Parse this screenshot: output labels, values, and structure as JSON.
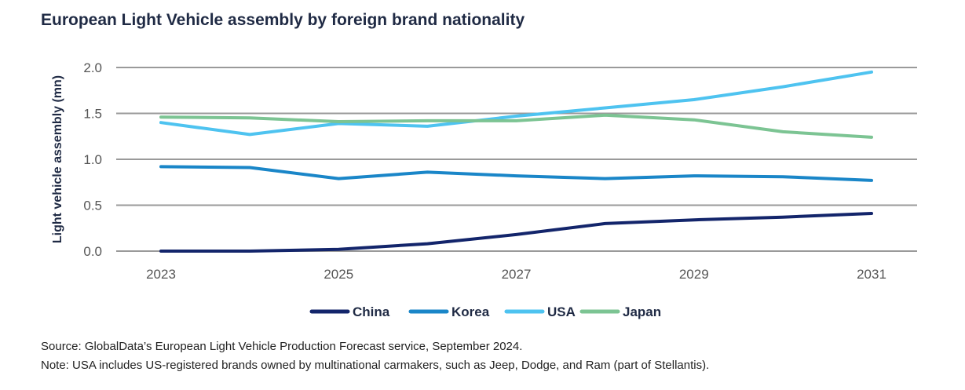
{
  "chart_data": {
    "type": "line",
    "title": "European Light Vehicle assembly by foreign brand nationality",
    "ylabel": "Light vehicle assembly (mn)",
    "xlabel": "",
    "x": [
      2023,
      2024,
      2025,
      2026,
      2027,
      2028,
      2029,
      2030,
      2031
    ],
    "x_ticks": [
      "2023",
      "2025",
      "2027",
      "2029",
      "2031"
    ],
    "y_ticks": [
      "0.0",
      "0.5",
      "1.0",
      "1.5",
      "2.0"
    ],
    "ylim": [
      0,
      2.0
    ],
    "grid": "horizontal",
    "legend_position": "bottom",
    "series": [
      {
        "name": "China",
        "color": "#13256b",
        "values": [
          0.0,
          0.0,
          0.02,
          0.08,
          0.18,
          0.3,
          0.34,
          0.37,
          0.41
        ]
      },
      {
        "name": "Korea",
        "color": "#1a86c8",
        "values": [
          0.92,
          0.91,
          0.79,
          0.86,
          0.82,
          0.79,
          0.82,
          0.81,
          0.77
        ]
      },
      {
        "name": "USA",
        "color": "#4ec3f0",
        "values": [
          1.4,
          1.27,
          1.39,
          1.36,
          1.47,
          1.56,
          1.65,
          1.79,
          1.95
        ]
      },
      {
        "name": "Japan",
        "color": "#7cc493",
        "values": [
          1.46,
          1.45,
          1.41,
          1.42,
          1.42,
          1.48,
          1.43,
          1.3,
          1.24
        ]
      }
    ]
  },
  "notes": {
    "source": "Source: GlobalData’s European Light Vehicle Production Forecast service, September 2024.",
    "note": "Note: USA includes US-registered brands owned by multinational carmakers, such as Jeep, Dodge, and Ram (part of Stellantis)."
  }
}
